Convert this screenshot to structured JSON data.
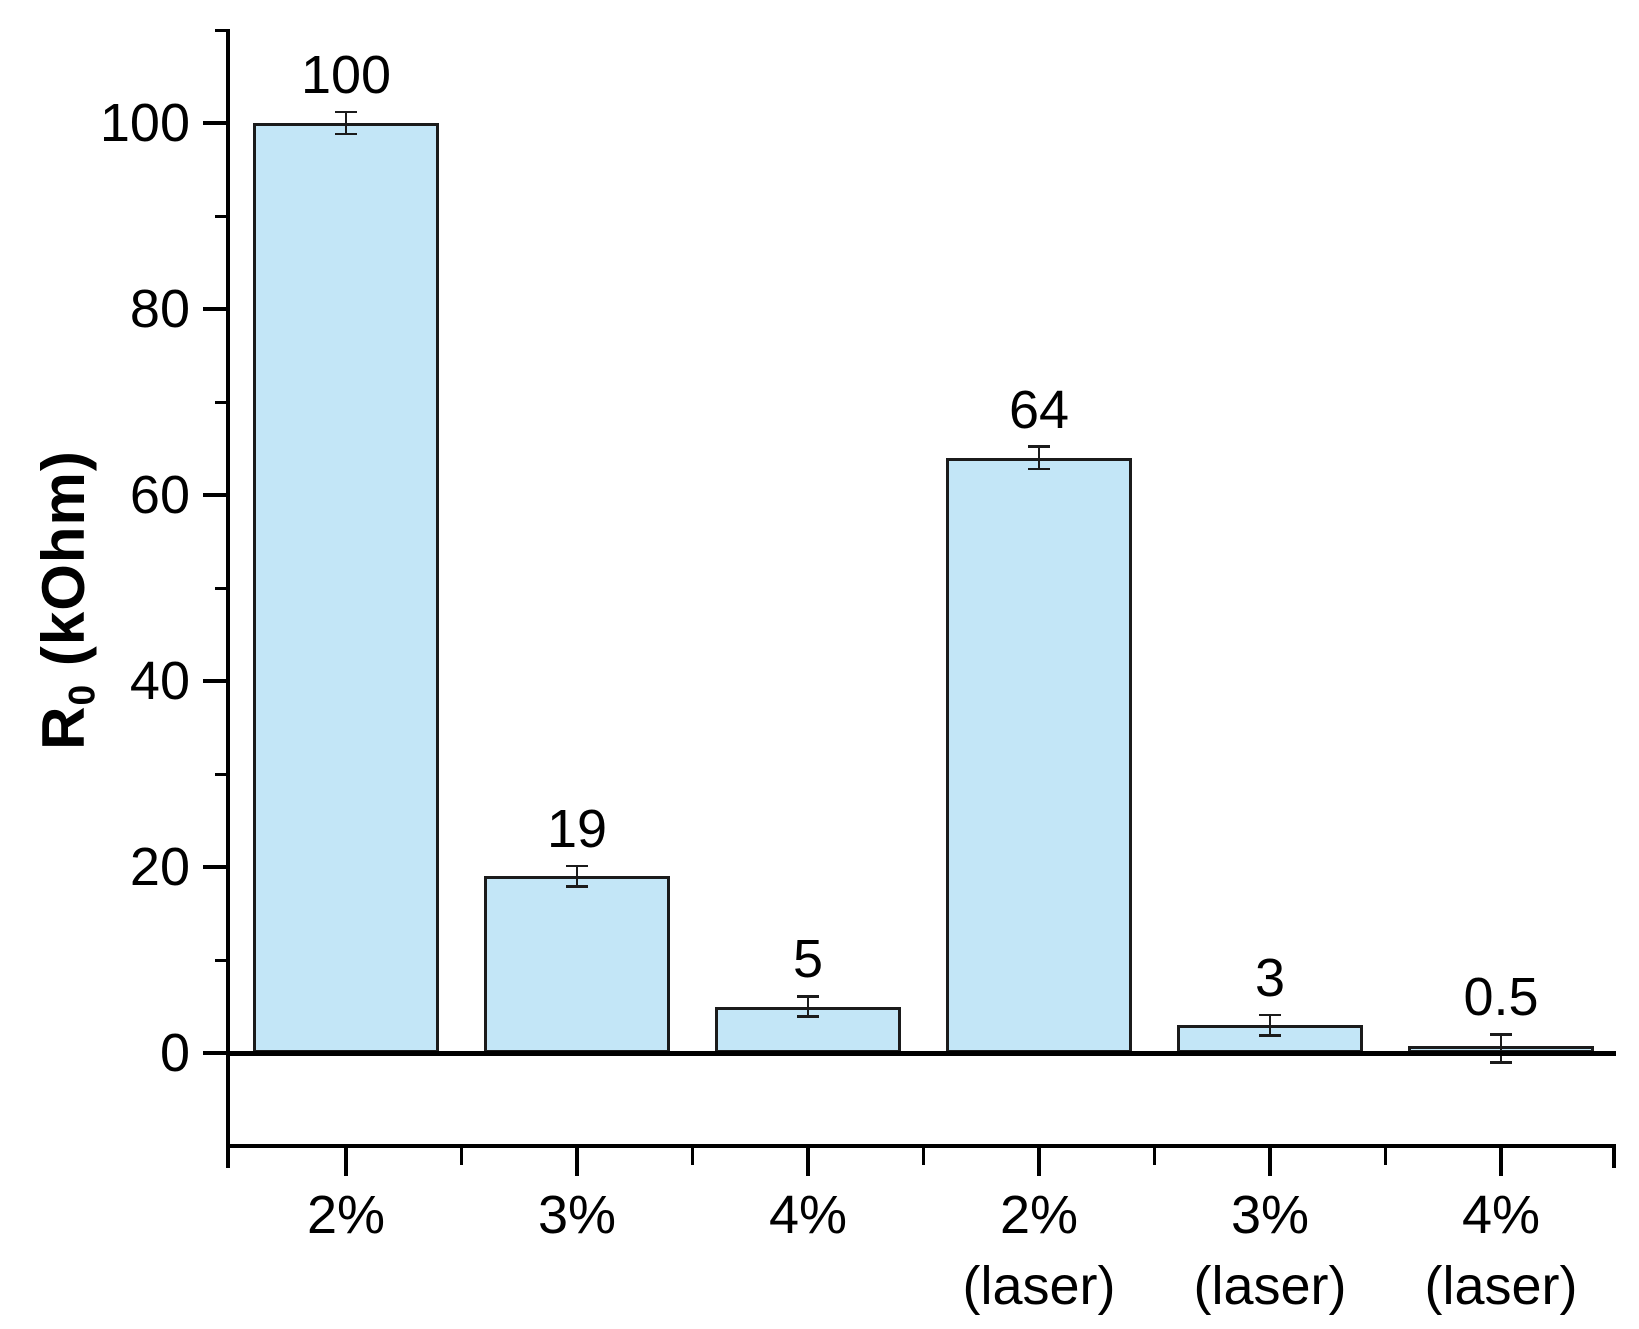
{
  "chart_data": {
    "type": "bar",
    "title": "",
    "xlabel": "",
    "ylabel": {
      "base": "R",
      "sub": "0",
      "rest": " (kOhm)"
    },
    "categories": [
      "2%",
      "3%",
      "4%",
      "2%",
      "3%",
      "4%"
    ],
    "category_sublabels": [
      "",
      "",
      "",
      "(laser)",
      "(laser)",
      "(laser)"
    ],
    "values": [
      100,
      19,
      5,
      64,
      3,
      0.5
    ],
    "value_labels": [
      "100",
      "19",
      "5",
      "64",
      "3",
      "0.5"
    ],
    "errors": [
      1.2,
      1.1,
      1.1,
      1.2,
      1.1,
      1.5
    ],
    "ylim": [
      -10,
      110
    ],
    "yticks_major": [
      0,
      20,
      40,
      60,
      80,
      100
    ],
    "yticks_minor": [
      10,
      30,
      50,
      70,
      90,
      110
    ],
    "grid": "off",
    "legend": "none",
    "colors": {
      "bar_fill": "#c3e6f7",
      "bar_stroke": "#1b1b1b",
      "error_bar": "#1b1b1b",
      "axis": "#000000",
      "text": "#000000",
      "background": "#ffffff"
    }
  }
}
